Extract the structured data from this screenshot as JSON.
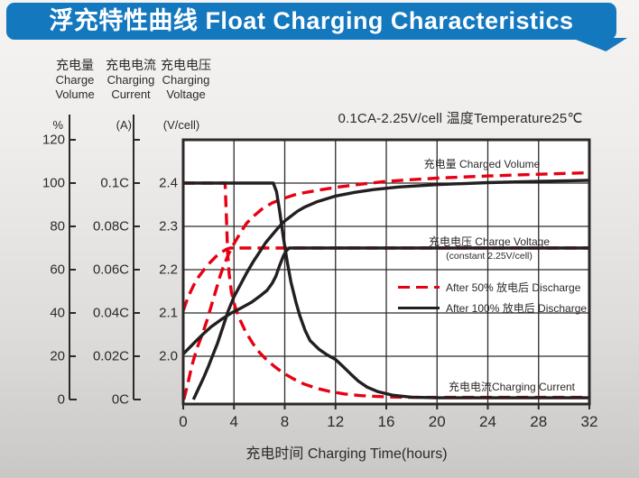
{
  "banner": {
    "title": "浮充特性曲线 Float Charging Characteristics"
  },
  "colors": {
    "blue": "#1478bf",
    "red": "#e60012",
    "black": "#231f20",
    "ink": "#2d292a",
    "grid": "#2d292a",
    "plot_bg": "#ffffff"
  },
  "condition": "0.1CA-2.25V/cell  温度Temperature25℃",
  "axes": {
    "volume": {
      "title_cn": "充电量",
      "title_en1": "Charge",
      "title_en2": "Volume",
      "unit": "%",
      "ticks": [
        "120",
        "100",
        "80",
        "60",
        "40",
        "20",
        "0"
      ],
      "tick_values": [
        120,
        100,
        80,
        60,
        40,
        20,
        0
      ]
    },
    "current": {
      "title_cn": "充电电流",
      "title_en1": "Charging",
      "title_en2": "Current",
      "unit": "(A)",
      "ticks": [
        "0.1C",
        "0.08C",
        "0.06C",
        "0.04C",
        "0.02C",
        "0C"
      ],
      "tick_values": [
        0.1,
        0.08,
        0.06,
        0.04,
        0.02,
        0
      ]
    },
    "voltage": {
      "title_cn": "充电电压",
      "title_en1": "Charging",
      "title_en2": "Voltage",
      "unit": "(V/cell)",
      "ticks": [
        "2.4",
        "2.3",
        "2.2",
        "2.1",
        "2.0"
      ],
      "tick_values": [
        2.4,
        2.3,
        2.2,
        2.1,
        2.0
      ]
    },
    "time": {
      "label": "充电时间 Charging Time(hours)",
      "ticks": [
        "0",
        "4",
        "8",
        "12",
        "16",
        "20",
        "24",
        "28",
        "32"
      ],
      "tick_values": [
        0,
        4,
        8,
        12,
        16,
        20,
        24,
        28,
        32
      ]
    }
  },
  "annotations": {
    "charged_volume": "充电量 Charged Volume",
    "charge_voltage": "充电电压 Charge Voltage",
    "charge_voltage_sub": "(constant 2.25V/cell)",
    "charging_current": "充电电流Charging Current"
  },
  "legend": [
    {
      "style": "dashed",
      "color_key": "red",
      "label": "After 50%  放电后 Discharge"
    },
    {
      "style": "solid",
      "color_key": "black",
      "label": "After 100%  放电后 Discharge"
    }
  ],
  "chart_data": {
    "type": "line",
    "title": "浮充特性曲线 Float Charging Characteristics",
    "condition": "0.1CA-2.25V/cell 温度Temperature25℃",
    "xlabel": "充电时间 Charging Time(hours)",
    "x_range": [
      0,
      32
    ],
    "x_ticks": [
      0,
      4,
      8,
      12,
      16,
      20,
      24,
      28,
      32
    ],
    "y_axes": {
      "volume_pct": {
        "range": [
          0,
          120
        ],
        "ticks": [
          0,
          20,
          40,
          60,
          80,
          100,
          120
        ]
      },
      "current_CA": {
        "range": [
          0,
          0.12
        ],
        "ticks": [
          0,
          0.02,
          0.04,
          0.06,
          0.08,
          0.1
        ]
      },
      "voltage_V_per_cell": {
        "range": [
          1.95,
          2.45
        ],
        "ticks": [
          2.0,
          2.1,
          2.2,
          2.3,
          2.4
        ]
      }
    },
    "grid": true,
    "legend_position": "middle-right",
    "series": [
      {
        "name": "Charged Volume after 50% discharge",
        "axis": "volume",
        "unit": "%",
        "style": "dashed",
        "color_key": "red",
        "points": [
          [
            0.05,
            0
          ],
          [
            0.35,
            7
          ],
          [
            0.7,
            16
          ],
          [
            1.1,
            24
          ],
          [
            1.5,
            30
          ],
          [
            1.9,
            37
          ],
          [
            2.3,
            45
          ],
          [
            2.6,
            51
          ],
          [
            2.9,
            57
          ],
          [
            3.2,
            62
          ],
          [
            3.6,
            67.5
          ],
          [
            4,
            72
          ],
          [
            4.5,
            77
          ],
          [
            5,
            81.5
          ],
          [
            5.6,
            85
          ],
          [
            6.2,
            88
          ],
          [
            7,
            90.8
          ],
          [
            7.8,
            92.7
          ],
          [
            9,
            95
          ],
          [
            10.5,
            96.6
          ],
          [
            12,
            98
          ],
          [
            14,
            99.5
          ],
          [
            16,
            100.8
          ],
          [
            18,
            101.6
          ],
          [
            20,
            102.3
          ],
          [
            24,
            103.3
          ],
          [
            28,
            104.1
          ],
          [
            32,
            104.8
          ]
        ]
      },
      {
        "name": "Charge Voltage after 50% discharge",
        "axis": "voltage",
        "unit": "V/cell",
        "style": "dashed",
        "color_key": "red",
        "points": [
          [
            0,
            2.105
          ],
          [
            0.4,
            2.138
          ],
          [
            0.8,
            2.163
          ],
          [
            1.2,
            2.183
          ],
          [
            1.7,
            2.202
          ],
          [
            2.1,
            2.216
          ],
          [
            2.6,
            2.231
          ],
          [
            3,
            2.24
          ],
          [
            3.4,
            2.247
          ],
          [
            3.7,
            2.25
          ],
          [
            32,
            2.25
          ]
        ]
      },
      {
        "name": "Charging Current after 50% discharge",
        "axis": "current",
        "unit": "CA",
        "style": "dashed",
        "color_key": "red",
        "points": [
          [
            0,
            0.1
          ],
          [
            3.3,
            0.1
          ],
          [
            3.4,
            0.085
          ],
          [
            3.5,
            0.068
          ],
          [
            3.62,
            0.058
          ],
          [
            3.8,
            0.0495
          ],
          [
            4.1,
            0.0425
          ],
          [
            4.5,
            0.0365
          ],
          [
            4.9,
            0.0315
          ],
          [
            5.5,
            0.0258
          ],
          [
            6,
            0.0218
          ],
          [
            6.6,
            0.0182
          ],
          [
            7.2,
            0.0152
          ],
          [
            7.9,
            0.0122
          ],
          [
            8.7,
            0.0095
          ],
          [
            9.5,
            0.0072
          ],
          [
            10.5,
            0.0052
          ],
          [
            11.5,
            0.0038
          ],
          [
            12.7,
            0.0026
          ],
          [
            14,
            0.0018
          ],
          [
            16,
            0.0012
          ],
          [
            18,
            0.001
          ],
          [
            32,
            0.001
          ]
        ]
      },
      {
        "name": "Charged Volume after 100% discharge",
        "axis": "volume",
        "unit": "%",
        "style": "solid",
        "color_key": "black",
        "points": [
          [
            0.8,
            0
          ],
          [
            1.2,
            5
          ],
          [
            1.6,
            10
          ],
          [
            2,
            15.5
          ],
          [
            2.3,
            20
          ],
          [
            2.7,
            26
          ],
          [
            3.1,
            33
          ],
          [
            3.55,
            41
          ],
          [
            4,
            47.5
          ],
          [
            4.5,
            53
          ],
          [
            5,
            58.5
          ],
          [
            5.5,
            63.5
          ],
          [
            6,
            68
          ],
          [
            6.5,
            72.5
          ],
          [
            7,
            76
          ],
          [
            7.5,
            79.5
          ],
          [
            8,
            82.5
          ],
          [
            9,
            87
          ],
          [
            9.6,
            89
          ],
          [
            10.5,
            91.3
          ],
          [
            12,
            94
          ],
          [
            13.5,
            95.7
          ],
          [
            15,
            97
          ],
          [
            17,
            98.2
          ],
          [
            20,
            99.3
          ],
          [
            24,
            100.2
          ],
          [
            28,
            100.8
          ],
          [
            32,
            101.3
          ]
        ]
      },
      {
        "name": "Charge Voltage after 100% discharge",
        "axis": "voltage",
        "unit": "V/cell",
        "style": "solid",
        "color_key": "black",
        "points": [
          [
            0,
            2.005
          ],
          [
            0.5,
            2.02
          ],
          [
            1,
            2.035
          ],
          [
            1.6,
            2.052
          ],
          [
            2.2,
            2.068
          ],
          [
            3,
            2.085
          ],
          [
            3.8,
            2.1
          ],
          [
            4.6,
            2.112
          ],
          [
            5.4,
            2.125
          ],
          [
            6,
            2.138
          ],
          [
            6.6,
            2.152
          ],
          [
            7,
            2.168
          ],
          [
            7.3,
            2.185
          ],
          [
            7.6,
            2.21
          ],
          [
            7.9,
            2.232
          ],
          [
            8.1,
            2.243
          ],
          [
            8.35,
            2.25
          ],
          [
            32,
            2.25
          ]
        ]
      },
      {
        "name": "Charging Current after 100% discharge",
        "axis": "current",
        "unit": "CA",
        "style": "solid",
        "color_key": "black",
        "points": [
          [
            0,
            0.1
          ],
          [
            7.1,
            0.1
          ],
          [
            7.35,
            0.096
          ],
          [
            7.6,
            0.087
          ],
          [
            7.9,
            0.0745
          ],
          [
            8.2,
            0.0635
          ],
          [
            8.5,
            0.054
          ],
          [
            8.9,
            0.0445
          ],
          [
            9.2,
            0.0385
          ],
          [
            9.6,
            0.032
          ],
          [
            10,
            0.0272
          ],
          [
            10.7,
            0.0232
          ],
          [
            11.3,
            0.0208
          ],
          [
            12,
            0.0185
          ],
          [
            12.6,
            0.0152
          ],
          [
            13.2,
            0.0118
          ],
          [
            13.8,
            0.0085
          ],
          [
            14.5,
            0.0057
          ],
          [
            15.3,
            0.0037
          ],
          [
            16.5,
            0.002
          ],
          [
            18,
            0.0011
          ],
          [
            20,
            0.0008
          ],
          [
            32,
            0.0008
          ]
        ]
      }
    ]
  }
}
